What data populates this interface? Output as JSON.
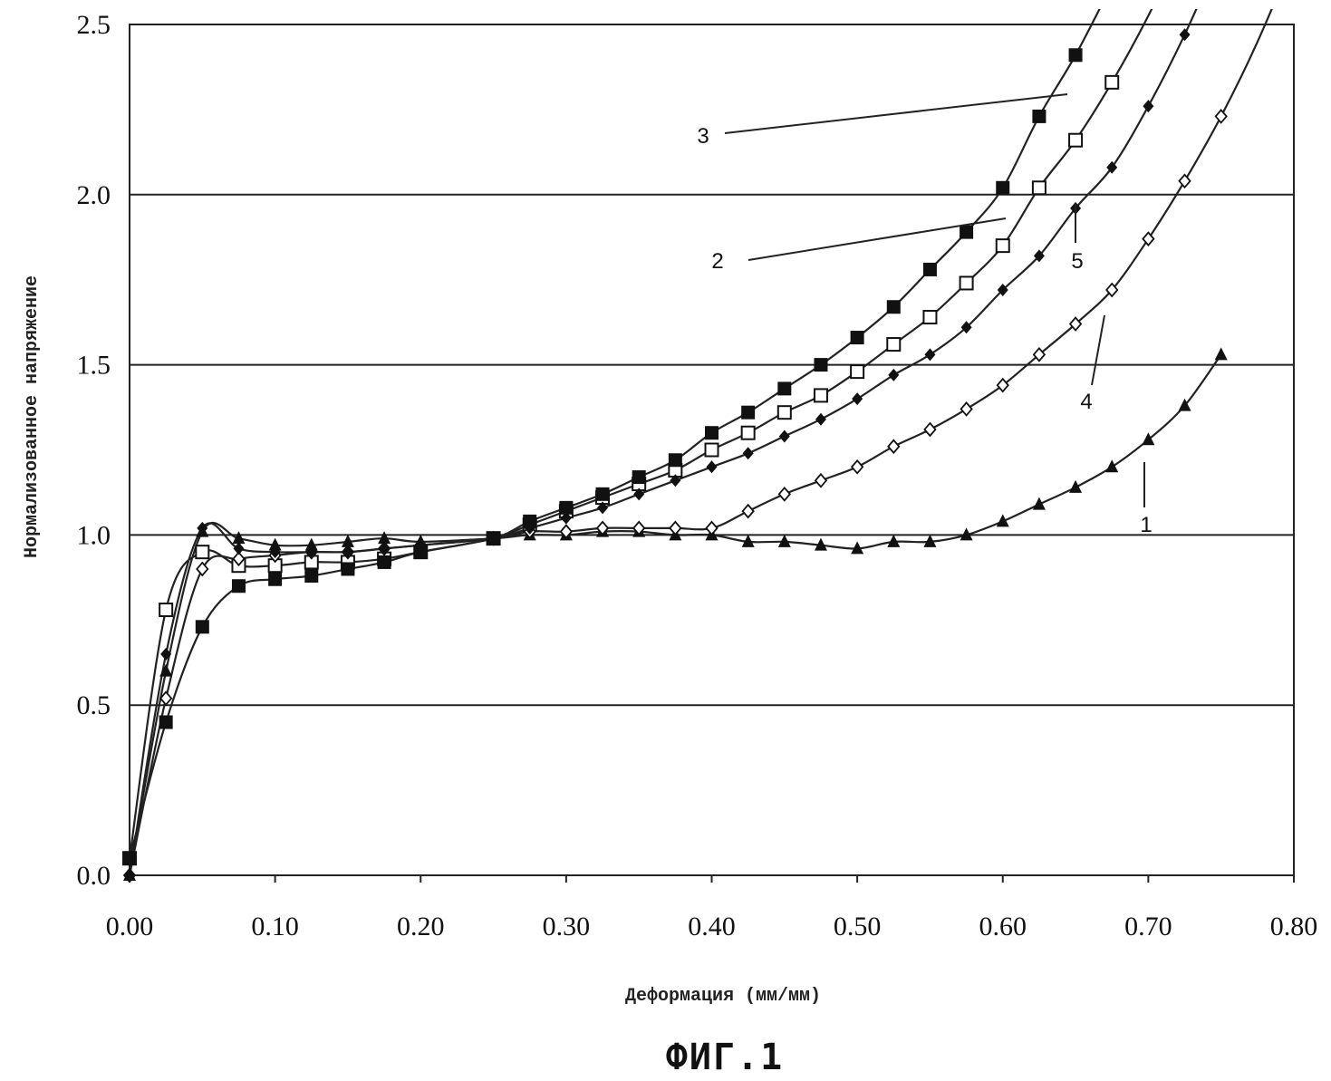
{
  "chart_data": {
    "type": "line",
    "title": "",
    "xlabel": "Деформация (мм/мм)",
    "ylabel": "Нормализованное напряжение",
    "caption": "ФИГ.1",
    "xlim": [
      0,
      0.8
    ],
    "ylim": [
      0,
      2.5
    ],
    "x_ticks": [
      "0.00",
      "0.10",
      "0.20",
      "0.30",
      "0.40",
      "0.50",
      "0.60",
      "0.70",
      "0.80"
    ],
    "y_ticks": [
      "0.0",
      "0.5",
      "1.0",
      "1.5",
      "2.0",
      "2.5"
    ],
    "grid": "horizontal",
    "series": [
      {
        "name": "1",
        "marker": "filled-triangle",
        "points": [
          [
            0,
            0
          ],
          [
            0.025,
            0.6
          ],
          [
            0.05,
            1.01
          ],
          [
            0.075,
            0.99
          ],
          [
            0.1,
            0.97
          ],
          [
            0.125,
            0.97
          ],
          [
            0.15,
            0.98
          ],
          [
            0.175,
            0.99
          ],
          [
            0.2,
            0.98
          ],
          [
            0.25,
            0.99
          ],
          [
            0.275,
            1.0
          ],
          [
            0.3,
            1.0
          ],
          [
            0.325,
            1.01
          ],
          [
            0.35,
            1.01
          ],
          [
            0.375,
            1.0
          ],
          [
            0.4,
            1.0
          ],
          [
            0.425,
            0.98
          ],
          [
            0.45,
            0.98
          ],
          [
            0.475,
            0.97
          ],
          [
            0.5,
            0.96
          ],
          [
            0.525,
            0.98
          ],
          [
            0.55,
            0.98
          ],
          [
            0.575,
            1.0
          ],
          [
            0.6,
            1.04
          ],
          [
            0.625,
            1.09
          ],
          [
            0.65,
            1.14
          ],
          [
            0.675,
            1.2
          ],
          [
            0.7,
            1.28
          ],
          [
            0.725,
            1.38
          ],
          [
            0.75,
            1.53
          ]
        ]
      },
      {
        "name": "2",
        "marker": "open-square",
        "points": [
          [
            0,
            0.05
          ],
          [
            0.025,
            0.78
          ],
          [
            0.05,
            0.95
          ],
          [
            0.075,
            0.91
          ],
          [
            0.1,
            0.91
          ],
          [
            0.125,
            0.92
          ],
          [
            0.15,
            0.92
          ],
          [
            0.175,
            0.93
          ],
          [
            0.2,
            0.95
          ],
          [
            0.25,
            0.99
          ],
          [
            0.275,
            1.03
          ],
          [
            0.3,
            1.07
          ],
          [
            0.325,
            1.11
          ],
          [
            0.35,
            1.15
          ],
          [
            0.375,
            1.19
          ],
          [
            0.4,
            1.25
          ],
          [
            0.425,
            1.3
          ],
          [
            0.45,
            1.36
          ],
          [
            0.475,
            1.41
          ],
          [
            0.5,
            1.48
          ],
          [
            0.525,
            1.56
          ],
          [
            0.55,
            1.64
          ],
          [
            0.575,
            1.74
          ],
          [
            0.6,
            1.85
          ],
          [
            0.625,
            2.02
          ],
          [
            0.65,
            2.16
          ],
          [
            0.675,
            2.33
          ]
        ]
      },
      {
        "name": "3",
        "marker": "filled-square",
        "points": [
          [
            0,
            0.05
          ],
          [
            0.025,
            0.45
          ],
          [
            0.05,
            0.73
          ],
          [
            0.075,
            0.85
          ],
          [
            0.1,
            0.87
          ],
          [
            0.125,
            0.88
          ],
          [
            0.15,
            0.9
          ],
          [
            0.175,
            0.92
          ],
          [
            0.2,
            0.95
          ],
          [
            0.25,
            0.99
          ],
          [
            0.275,
            1.04
          ],
          [
            0.3,
            1.08
          ],
          [
            0.325,
            1.12
          ],
          [
            0.35,
            1.17
          ],
          [
            0.375,
            1.22
          ],
          [
            0.4,
            1.3
          ],
          [
            0.425,
            1.36
          ],
          [
            0.45,
            1.43
          ],
          [
            0.475,
            1.5
          ],
          [
            0.5,
            1.58
          ],
          [
            0.525,
            1.67
          ],
          [
            0.55,
            1.78
          ],
          [
            0.575,
            1.89
          ],
          [
            0.6,
            2.02
          ],
          [
            0.625,
            2.23
          ],
          [
            0.65,
            2.41
          ]
        ]
      },
      {
        "name": "4",
        "marker": "open-diamond",
        "points": [
          [
            0,
            0
          ],
          [
            0.025,
            0.52
          ],
          [
            0.05,
            0.9
          ],
          [
            0.075,
            0.93
          ],
          [
            0.1,
            0.94
          ],
          [
            0.125,
            0.95
          ],
          [
            0.15,
            0.95
          ],
          [
            0.175,
            0.96
          ],
          [
            0.2,
            0.97
          ],
          [
            0.25,
            0.99
          ],
          [
            0.275,
            1.01
          ],
          [
            0.3,
            1.01
          ],
          [
            0.325,
            1.02
          ],
          [
            0.35,
            1.02
          ],
          [
            0.375,
            1.02
          ],
          [
            0.4,
            1.02
          ],
          [
            0.425,
            1.07
          ],
          [
            0.45,
            1.12
          ],
          [
            0.475,
            1.16
          ],
          [
            0.5,
            1.2
          ],
          [
            0.525,
            1.26
          ],
          [
            0.55,
            1.31
          ],
          [
            0.575,
            1.37
          ],
          [
            0.6,
            1.44
          ],
          [
            0.625,
            1.53
          ],
          [
            0.65,
            1.62
          ],
          [
            0.675,
            1.72
          ],
          [
            0.7,
            1.87
          ],
          [
            0.725,
            2.04
          ],
          [
            0.75,
            2.23
          ]
        ]
      },
      {
        "name": "5",
        "marker": "filled-diamond",
        "points": [
          [
            0,
            0
          ],
          [
            0.025,
            0.65
          ],
          [
            0.05,
            1.02
          ],
          [
            0.075,
            0.96
          ],
          [
            0.1,
            0.95
          ],
          [
            0.125,
            0.95
          ],
          [
            0.15,
            0.95
          ],
          [
            0.175,
            0.96
          ],
          [
            0.2,
            0.97
          ],
          [
            0.25,
            0.99
          ],
          [
            0.275,
            1.02
          ],
          [
            0.3,
            1.05
          ],
          [
            0.325,
            1.08
          ],
          [
            0.35,
            1.12
          ],
          [
            0.375,
            1.16
          ],
          [
            0.4,
            1.2
          ],
          [
            0.425,
            1.24
          ],
          [
            0.45,
            1.29
          ],
          [
            0.475,
            1.34
          ],
          [
            0.5,
            1.4
          ],
          [
            0.525,
            1.47
          ],
          [
            0.55,
            1.53
          ],
          [
            0.575,
            1.61
          ],
          [
            0.6,
            1.72
          ],
          [
            0.625,
            1.82
          ],
          [
            0.65,
            1.96
          ],
          [
            0.675,
            2.08
          ],
          [
            0.7,
            2.26
          ],
          [
            0.725,
            2.47
          ]
        ]
      }
    ]
  }
}
